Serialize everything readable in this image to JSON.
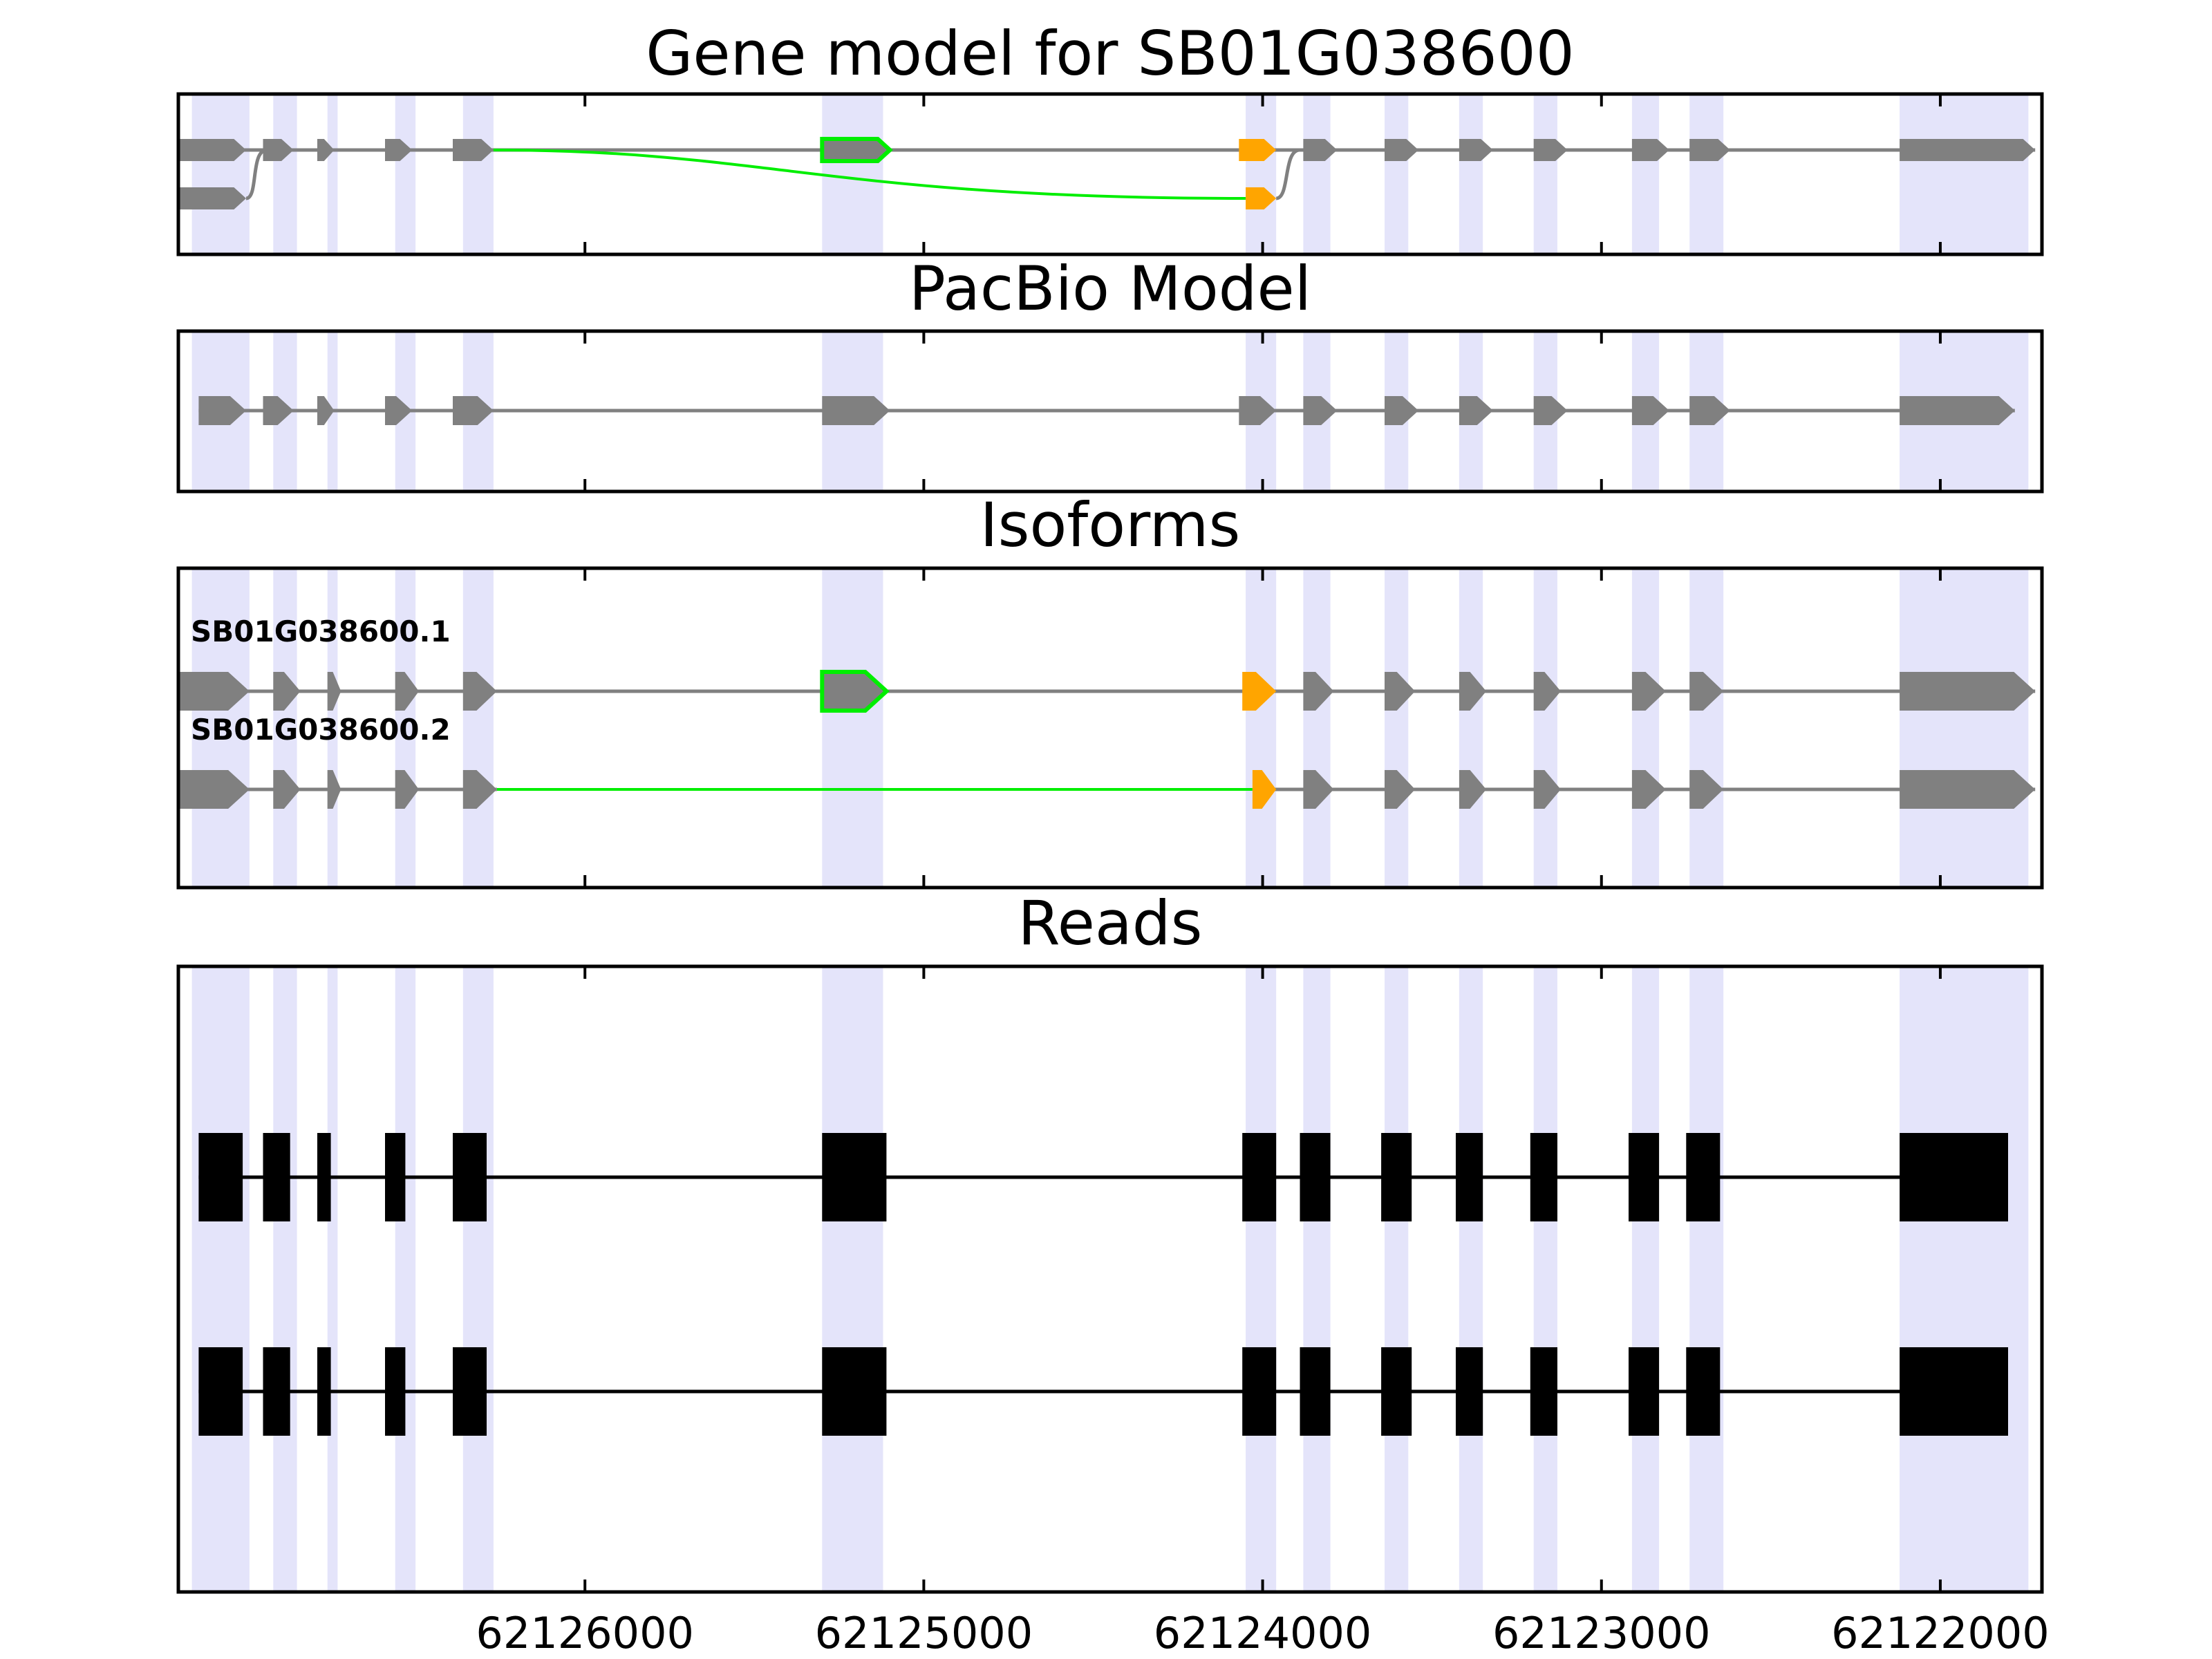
{
  "chart_data": {
    "type": "gene-structure",
    "title": "Gene model for SB01G038600",
    "xaxis": {
      "reversed": true,
      "range": [
        62127200,
        62121700
      ],
      "ticks": [
        62126000,
        62125000,
        62124000,
        62123000,
        62122000
      ]
    },
    "tick_labels": [
      "62126000",
      "62125000",
      "62124000",
      "62123000",
      "62122000"
    ],
    "highlight_regions": [
      [
        62127160,
        62126990
      ],
      [
        62126920,
        62126850
      ],
      [
        62126760,
        62126730
      ],
      [
        62126560,
        62126500
      ],
      [
        62126360,
        62126270
      ],
      [
        62125300,
        62125120
      ],
      [
        62124050,
        62123960
      ],
      [
        62123880,
        62123800
      ],
      [
        62123640,
        62123570
      ],
      [
        62123420,
        62123350
      ],
      [
        62123200,
        62123130
      ],
      [
        62122910,
        62122830
      ],
      [
        62122740,
        62122640
      ],
      [
        62122120,
        62121740
      ]
    ],
    "colors": {
      "exon": "#808080",
      "intron": "#808080",
      "alt_exon": "#ffa500",
      "skip": "#00ee00",
      "highlight": "#e4e4fa",
      "read": "#000000"
    },
    "panels": [
      {
        "title": "Gene model for SB01G038600",
        "rows": [
          {
            "exons": [
              [
                62127200,
                62127000
              ],
              [
                62126950,
                62126860
              ],
              [
                62126790,
                62126740
              ],
              [
                62126590,
                62126510
              ],
              [
                62126390,
                62126270
              ],
              [
                62125300,
                62125100
              ],
              [
                62124070,
                62123960
              ],
              [
                62123880,
                62123780
              ],
              [
                62123640,
                62123540
              ],
              [
                62123420,
                62123320
              ],
              [
                62123200,
                62123100
              ],
              [
                62122910,
                62122800
              ],
              [
                62122740,
                62122620
              ],
              [
                62122120,
                62121720
              ]
            ],
            "alt_exon": 6,
            "skip_exon": 5
          },
          {
            "exons": [
              [
                62127200,
                62127000
              ],
              [
                62124050,
                62123960
              ]
            ],
            "alt_exon": 1,
            "connect": "curve"
          }
        ]
      },
      {
        "title": "PacBio Model",
        "rows": [
          {
            "exons": [
              [
                62127140,
                62127000
              ],
              [
                62126950,
                62126860
              ],
              [
                62126790,
                62126740
              ],
              [
                62126590,
                62126510
              ],
              [
                62126390,
                62126270
              ],
              [
                62125300,
                62125100
              ],
              [
                62124070,
                62123960
              ],
              [
                62123880,
                62123780
              ],
              [
                62123640,
                62123540
              ],
              [
                62123420,
                62123320
              ],
              [
                62123200,
                62123100
              ],
              [
                62122910,
                62122800
              ],
              [
                62122740,
                62122620
              ],
              [
                62122120,
                62121780
              ]
            ]
          }
        ]
      },
      {
        "title": "Isoforms",
        "rows": [
          {
            "name": "SB01G038600.2",
            "exons": [
              [
                62127200,
                62126990
              ],
              [
                62126920,
                62126840
              ],
              [
                62126760,
                62126720
              ],
              [
                62126560,
                62126490
              ],
              [
                62126360,
                62126260
              ],
              [
                62124030,
                62123960
              ],
              [
                62123880,
                62123790
              ],
              [
                62123640,
                62123550
              ],
              [
                62123420,
                62123340
              ],
              [
                62123200,
                62123120
              ],
              [
                62122910,
                62122810
              ],
              [
                62122740,
                62122640
              ],
              [
                62122120,
                62121720
              ]
            ],
            "alt_exon": 5,
            "skip_after": 4
          },
          {
            "name": "SB01G038600.1",
            "exons": [
              [
                62127200,
                62126990
              ],
              [
                62126920,
                62126840
              ],
              [
                62126760,
                62126720
              ],
              [
                62126560,
                62126490
              ],
              [
                62126360,
                62126260
              ],
              [
                62125300,
                62125110
              ],
              [
                62124060,
                62123960
              ],
              [
                62123880,
                62123790
              ],
              [
                62123640,
                62123550
              ],
              [
                62123420,
                62123340
              ],
              [
                62123200,
                62123120
              ],
              [
                62122910,
                62122810
              ],
              [
                62122740,
                62122640
              ],
              [
                62122120,
                62121720
              ]
            ],
            "alt_exon": 6,
            "skip_exon": 5
          }
        ]
      },
      {
        "title": "Reads",
        "rows": [
          {
            "exons": [
              [
                62127140,
                62127010
              ],
              [
                62126950,
                62126870
              ],
              [
                62126790,
                62126750
              ],
              [
                62126590,
                62126530
              ],
              [
                62126390,
                62126290
              ],
              [
                62125300,
                62125110
              ],
              [
                62124060,
                62123960
              ],
              [
                62123890,
                62123800
              ],
              [
                62123650,
                62123560
              ],
              [
                62123430,
                62123350
              ],
              [
                62123210,
                62123130
              ],
              [
                62122920,
                62122830
              ],
              [
                62122750,
                62122650
              ],
              [
                62122120,
                62121800
              ]
            ]
          },
          {
            "exons": [
              [
                62127140,
                62127010
              ],
              [
                62126950,
                62126870
              ],
              [
                62126790,
                62126750
              ],
              [
                62126590,
                62126530
              ],
              [
                62126390,
                62126290
              ],
              [
                62125300,
                62125110
              ],
              [
                62124060,
                62123960
              ],
              [
                62123890,
                62123800
              ],
              [
                62123650,
                62123560
              ],
              [
                62123430,
                62123350
              ],
              [
                62123210,
                62123130
              ],
              [
                62122920,
                62122830
              ],
              [
                62122750,
                62122650
              ],
              [
                62122120,
                62121800
              ]
            ]
          }
        ]
      }
    ]
  }
}
